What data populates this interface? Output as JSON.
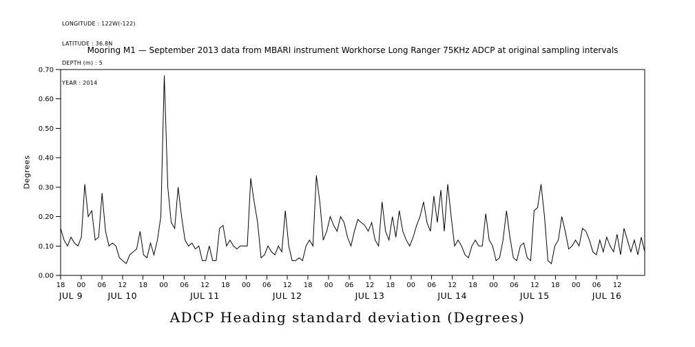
{
  "metadata": {
    "lines": [
      "LONGITUDE : 122W(-122)",
      "LATITUDE : 36.8N",
      "DEPTH (m) : 5",
      "YEAR : 2014"
    ]
  },
  "footer": {
    "title": "ADCP Heading standard deviation (Degrees)"
  },
  "chart_data": {
    "type": "line",
    "title": "Mooring M1 — September 2013 data from MBARI instrument Workhorse Long Ranger 75KHz ADCP at original sampling intervals",
    "xlabel": "",
    "ylabel": "Degrees",
    "ylim": [
      0.0,
      0.7
    ],
    "grid": false,
    "legend": false,
    "line_color": "#000000",
    "background_color": "#ffffff",
    "y_axis": {
      "label": "Degrees",
      "min": 0.0,
      "max": 0.7,
      "tick_interval": 0.1,
      "tick_labels": [
        "0.00",
        "0.10",
        "0.20",
        "0.30",
        "0.40",
        "0.50",
        "0.60",
        "0.70"
      ]
    },
    "x_axis": {
      "span_hours": 170,
      "tick_interval_hours": 6,
      "hour_labels": [
        "18",
        "00",
        "06",
        "12",
        "18",
        "00",
        "06",
        "12",
        "18",
        "00",
        "06",
        "12",
        "18",
        "00",
        "06",
        "12",
        "18",
        "00",
        "06",
        "12",
        "18",
        "00",
        "06",
        "12",
        "18",
        "00",
        "06",
        "12"
      ],
      "day_labels": [
        {
          "label": "JUL 9",
          "hour": 3
        },
        {
          "label": "JUL 10",
          "hour": 18
        },
        {
          "label": "JUL 11",
          "hour": 42
        },
        {
          "label": "JUL 12",
          "hour": 66
        },
        {
          "label": "JUL 13",
          "hour": 90
        },
        {
          "label": "JUL 14",
          "hour": 114
        },
        {
          "label": "JUL 15",
          "hour": 138
        },
        {
          "label": "JUL 16",
          "hour": 159
        }
      ]
    },
    "values": [
      0.16,
      0.12,
      0.1,
      0.13,
      0.11,
      0.1,
      0.13,
      0.31,
      0.2,
      0.22,
      0.12,
      0.13,
      0.28,
      0.15,
      0.1,
      0.11,
      0.1,
      0.06,
      0.05,
      0.04,
      0.07,
      0.08,
      0.09,
      0.15,
      0.07,
      0.06,
      0.11,
      0.07,
      0.12,
      0.2,
      0.68,
      0.3,
      0.18,
      0.16,
      0.3,
      0.2,
      0.12,
      0.1,
      0.11,
      0.09,
      0.1,
      0.05,
      0.05,
      0.1,
      0.05,
      0.05,
      0.16,
      0.17,
      0.1,
      0.12,
      0.1,
      0.09,
      0.1,
      0.1,
      0.1,
      0.33,
      0.25,
      0.18,
      0.06,
      0.07,
      0.1,
      0.08,
      0.07,
      0.1,
      0.08,
      0.22,
      0.1,
      0.05,
      0.05,
      0.06,
      0.05,
      0.1,
      0.12,
      0.1,
      0.34,
      0.25,
      0.12,
      0.15,
      0.2,
      0.17,
      0.15,
      0.2,
      0.18,
      0.13,
      0.1,
      0.15,
      0.19,
      0.18,
      0.17,
      0.15,
      0.18,
      0.12,
      0.1,
      0.25,
      0.15,
      0.12,
      0.2,
      0.13,
      0.22,
      0.15,
      0.12,
      0.1,
      0.13,
      0.17,
      0.2,
      0.25,
      0.18,
      0.15,
      0.27,
      0.18,
      0.29,
      0.15,
      0.31,
      0.2,
      0.1,
      0.12,
      0.1,
      0.07,
      0.06,
      0.1,
      0.12,
      0.1,
      0.1,
      0.21,
      0.12,
      0.1,
      0.05,
      0.06,
      0.12,
      0.22,
      0.13,
      0.06,
      0.05,
      0.1,
      0.11,
      0.06,
      0.05,
      0.22,
      0.23,
      0.31,
      0.2,
      0.05,
      0.04,
      0.1,
      0.12,
      0.2,
      0.15,
      0.09,
      0.1,
      0.12,
      0.1,
      0.16,
      0.15,
      0.12,
      0.08,
      0.07,
      0.12,
      0.08,
      0.13,
      0.1,
      0.08,
      0.14,
      0.07,
      0.16,
      0.12,
      0.08,
      0.12,
      0.07,
      0.13,
      0.08
    ]
  }
}
